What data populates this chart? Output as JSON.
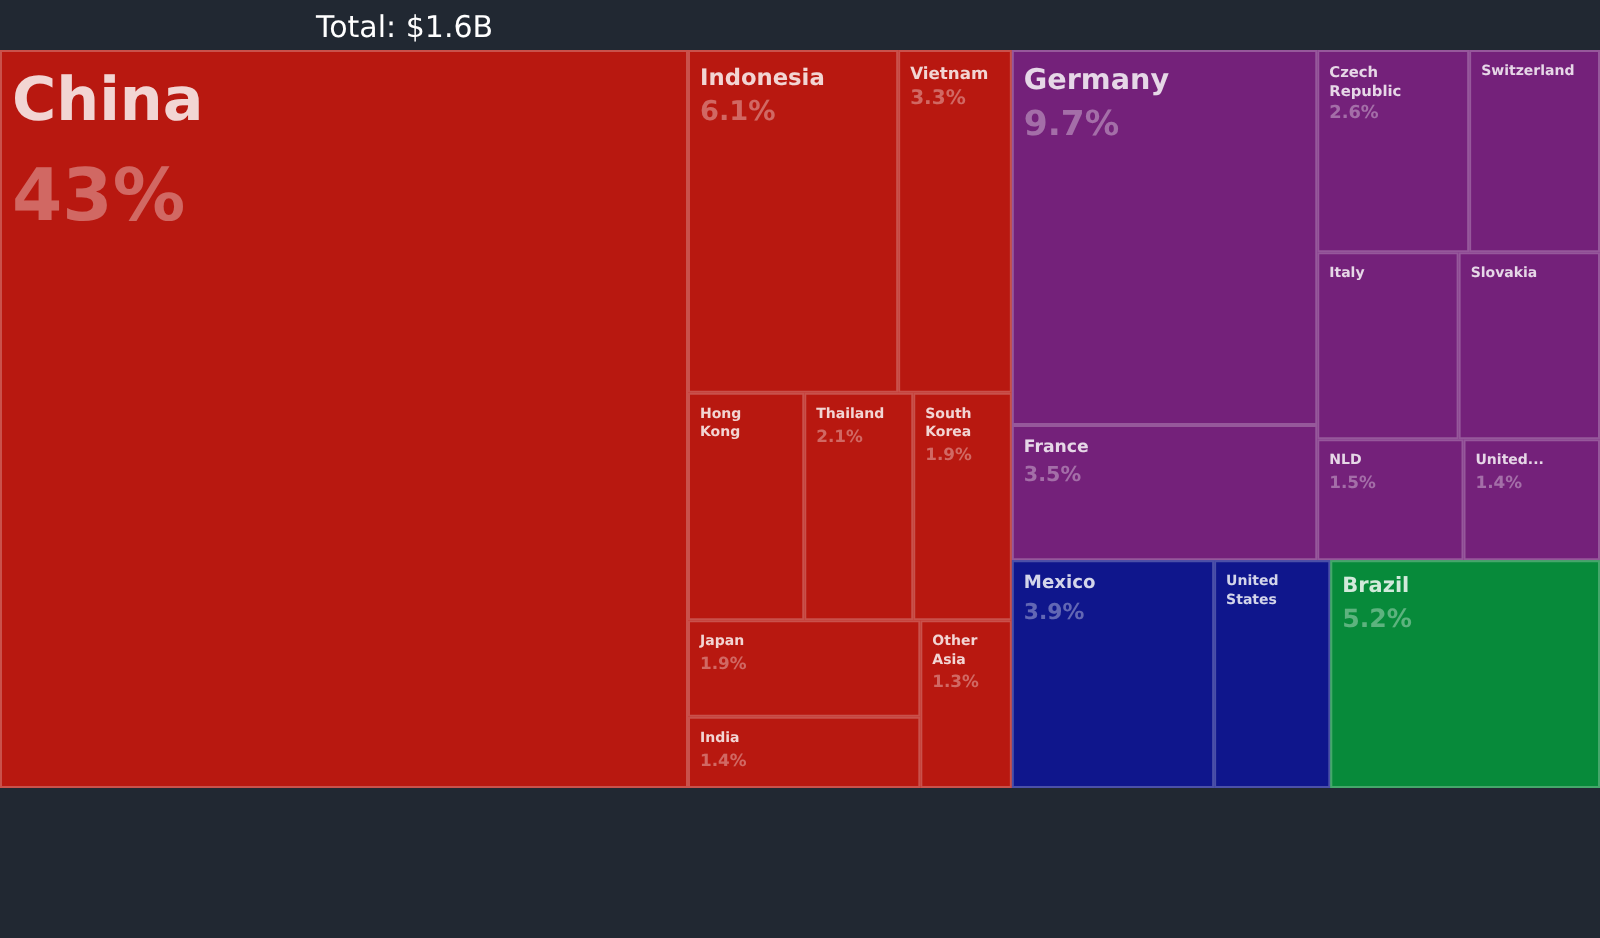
{
  "chart_data": {
    "type": "other",
    "title": "Total: $1.6B",
    "categories": [
      "China",
      "Indonesia",
      "Vietnam",
      "Thailand",
      "Japan",
      "South Korea",
      "India",
      "Other Asia",
      "Hong Kong",
      "Germany",
      "France",
      "Czech Republic",
      "NLD",
      "United...",
      "Slovakia",
      "Italy",
      "Switzerland",
      "Mexico",
      "United States",
      "Brazil"
    ],
    "values": [
      43,
      6.1,
      3.3,
      2.1,
      1.9,
      1.9,
      1.4,
      1.3,
      null,
      9.7,
      3.5,
      2.6,
      1.5,
      1.4,
      null,
      null,
      null,
      3.9,
      null,
      5.2
    ],
    "value_labels": [
      "43%",
      "6.1%",
      "3.3%",
      "2.1%",
      "1.9%",
      "1.9%",
      "1.4%",
      "1.3%",
      null,
      "9.7%",
      "3.5%",
      "2.6%",
      "1.5%",
      "1.4%",
      null,
      null,
      null,
      "3.9%",
      null,
      "5.2%"
    ],
    "colors": [
      "#b81810",
      "#b81810",
      "#b81810",
      "#b81810",
      "#b81810",
      "#b81810",
      "#b81810",
      "#b81810",
      "#b81810",
      "#74217a",
      "#74217a",
      "#74217a",
      "#74217a",
      "#74217a",
      "#74217a",
      "#74217a",
      "#74217a",
      "#0f168c",
      "#0f168c",
      "#078a3a"
    ]
  }
}
